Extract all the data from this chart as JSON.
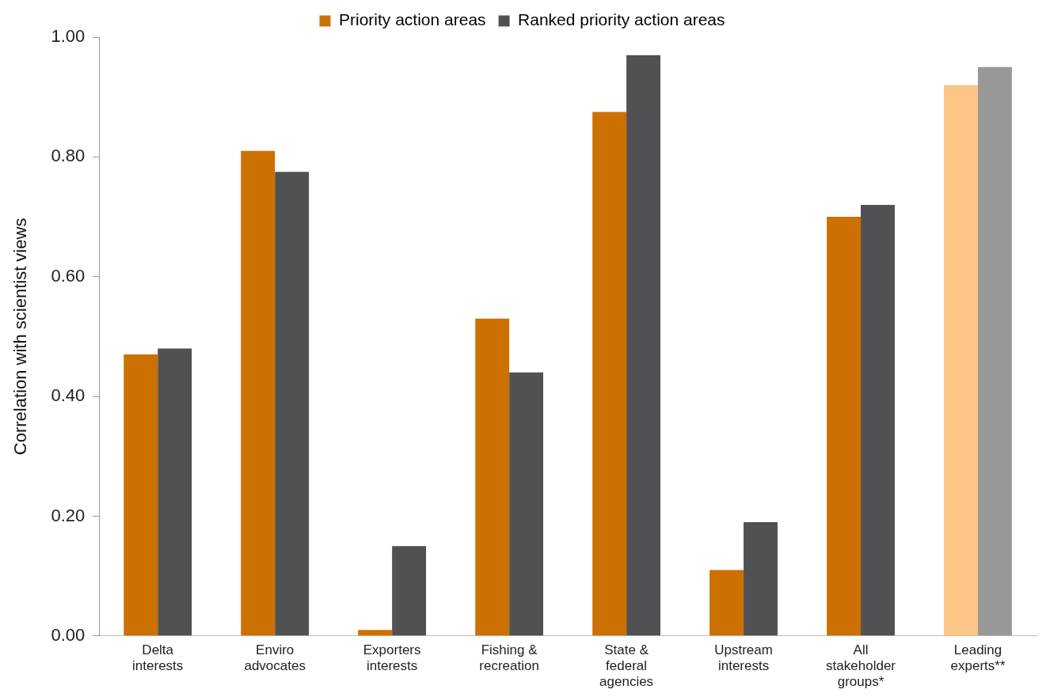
{
  "chart_data": {
    "type": "bar",
    "ylabel": "Correlation with scientist views",
    "categories": [
      "Delta\ninterests",
      "Enviro\nadvocates",
      "Exporters\ninterests",
      "Fishing &\nrecreation",
      "State &\nfederal\nagencies",
      "Upstream\ninterests",
      "All\nstakeholder\ngroups*",
      "Leading\nexperts**"
    ],
    "series": [
      {
        "name": "Priority action areas",
        "color": "#cc7000",
        "colors": [
          "#cc7000",
          "#cc7000",
          "#cc7000",
          "#cc7000",
          "#cc7000",
          "#cc7000",
          "#cc7000",
          "#fdc586"
        ],
        "values": [
          0.47,
          0.81,
          0.01,
          0.53,
          0.875,
          0.11,
          0.7,
          0.92
        ]
      },
      {
        "name": "Ranked priority action areas",
        "color": "#515154",
        "colors": [
          "#515154",
          "#515154",
          "#515154",
          "#515154",
          "#515154",
          "#515154",
          "#515154",
          "#999899"
        ],
        "values": [
          0.48,
          0.775,
          0.15,
          0.44,
          0.97,
          0.19,
          0.72,
          0.95
        ]
      }
    ],
    "ylim": [
      0,
      1
    ],
    "yticks": [
      {
        "value": 0,
        "label": "0.00"
      },
      {
        "value": 0.2,
        "label": "0.20"
      },
      {
        "value": 0.4,
        "label": "0.40"
      },
      {
        "value": 0.6,
        "label": "0.60"
      },
      {
        "value": 0.8,
        "label": "0.80"
      },
      {
        "value": 1,
        "label": "1.00"
      }
    ],
    "grid": false,
    "legend": "top"
  }
}
